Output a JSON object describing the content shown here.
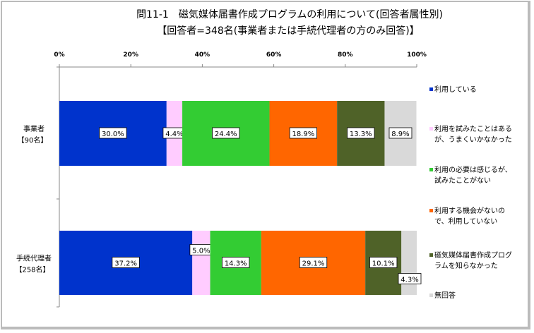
{
  "chart_data": {
    "type": "bar",
    "orientation": "horizontal",
    "stacked": "100%",
    "title": "問11-1　磁気媒体届書作成プログラムの利用について(回答者属性別)",
    "subtitle": "【回答者=348名(事業者または手続代理者の方のみ回答)】",
    "xlim": [
      0,
      100
    ],
    "xticks": [
      "0%",
      "20%",
      "40%",
      "60%",
      "80%",
      "100%"
    ],
    "legend_position": "right",
    "categories": [
      {
        "label": "事業者",
        "sub": "【90名】"
      },
      {
        "label": "手続代理者",
        "sub": "【258名】"
      }
    ],
    "series": [
      {
        "name": "利用している",
        "color": "#0033cc",
        "values": [
          30.0,
          37.2
        ]
      },
      {
        "name": "利用を試みたことはあるが、うまくいかなかった",
        "lines": [
          "利用を試みたことはある",
          "が、うまくいかなかった"
        ],
        "color": "#ffccff",
        "values": [
          4.4,
          5.0
        ]
      },
      {
        "name": "利用の必要は感じるが、試みたことがない",
        "lines": [
          "利用の必要は感じるが、",
          "試みたことがない"
        ],
        "color": "#33cc33",
        "values": [
          24.4,
          14.3
        ]
      },
      {
        "name": "利用する機会がないので、利用していない",
        "lines": [
          "利用する機会がないの",
          "で、利用していない"
        ],
        "color": "#ff6600",
        "values": [
          18.9,
          29.1
        ]
      },
      {
        "name": "磁気媒体届書作成プログラムを知らなかった",
        "lines": [
          "磁気媒体届書作成プログ",
          "ラムを知らなかった"
        ],
        "color": "#4f6228",
        "values": [
          13.3,
          10.1
        ]
      },
      {
        "name": "無回答",
        "lines": [
          "無回答"
        ],
        "color": "#d9d9d9",
        "values": [
          8.9,
          4.3
        ]
      }
    ],
    "data_labels": [
      [
        "30.0%",
        "4.4%",
        "24.4%",
        "18.9%",
        "13.3%",
        "8.9%"
      ],
      [
        "37.2%",
        "5.0%",
        "14.3%",
        "29.1%",
        "10.1%",
        "4.3%"
      ]
    ]
  }
}
